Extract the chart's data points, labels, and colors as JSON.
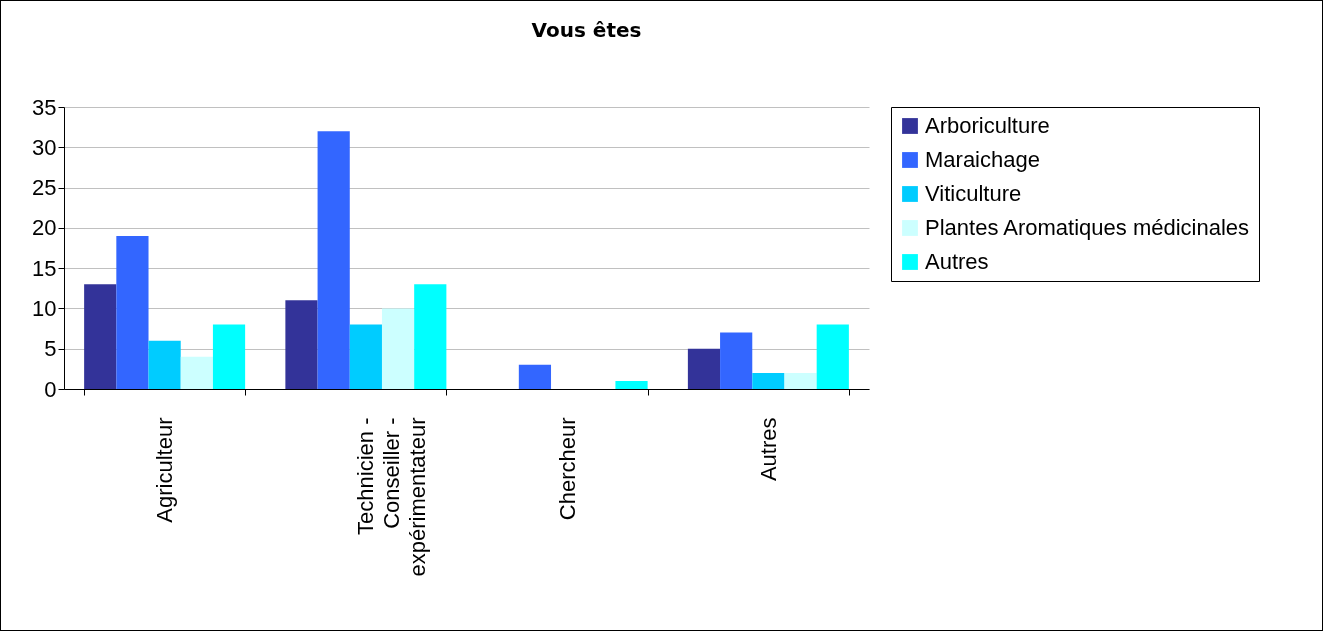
{
  "chart_data": {
    "type": "bar",
    "title": "Vous êtes",
    "categories": [
      "Agriculteur",
      "Technicien - Conseiller - expérimentateur",
      "Chercheur",
      "Autres"
    ],
    "series": [
      {
        "name": "Arboriculture",
        "color": "#333399",
        "values": [
          13,
          11,
          0,
          5
        ]
      },
      {
        "name": "Maraichage",
        "color": "#3366ff",
        "values": [
          19,
          32,
          3,
          7
        ]
      },
      {
        "name": "Viticulture",
        "color": "#00ccff",
        "values": [
          6,
          8,
          0,
          2
        ]
      },
      {
        "name": "Plantes Aromatiques médicinales",
        "color": "#ccffff",
        "values": [
          4,
          10,
          0,
          2
        ]
      },
      {
        "name": "Autres",
        "color": "#00ffff",
        "values": [
          8,
          13,
          1,
          8
        ]
      }
    ],
    "ylim": [
      0,
      35
    ],
    "yticks": [
      0,
      5,
      10,
      15,
      20,
      25,
      30,
      35
    ],
    "grid": "y",
    "legend": "right"
  }
}
